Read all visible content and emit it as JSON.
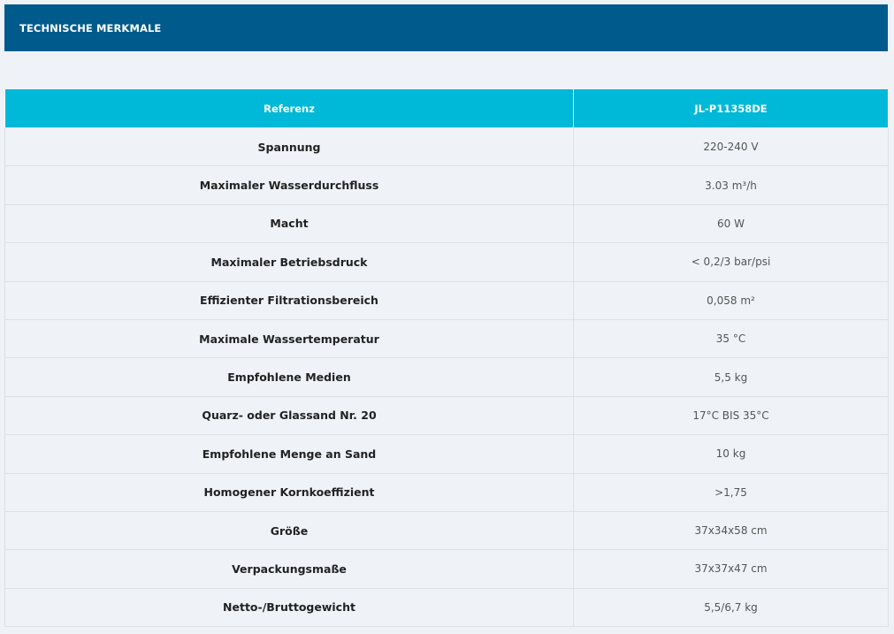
{
  "header": {
    "title": "TECHNISCHE MERKMALE"
  },
  "table": {
    "columns": [
      "Referenz",
      "JL-P11358DE"
    ],
    "rows": [
      {
        "label": "Spannung",
        "value": "220-240 V"
      },
      {
        "label": "Maximaler Wasserdurchfluss",
        "value": "3.03 m³/h"
      },
      {
        "label": "Macht",
        "value": "60 W"
      },
      {
        "label": "Maximaler Betriebsdruck",
        "value": "< 0,2/3 bar/psi"
      },
      {
        "label": "Effizienter Filtrationsbereich",
        "value": "0,058 m²"
      },
      {
        "label": "Maximale Wassertemperatur",
        "value": "35 °C"
      },
      {
        "label": "Empfohlene Medien",
        "value": "5,5 kg"
      },
      {
        "label": "Quarz- oder Glassand Nr. 20",
        "value": "17°C BIS 35°C"
      },
      {
        "label": "Empfohlene Menge an Sand",
        "value": "10 kg"
      },
      {
        "label": "Homogener Kornkoeffizient",
        "value": ">1,75"
      },
      {
        "label": "Größe",
        "value": "37x34x58 cm"
      },
      {
        "label": "Verpackungsmaße",
        "value": "37x37x47 cm"
      },
      {
        "label": "Netto-/Bruttogewicht",
        "value": "5,5/6,7 kg"
      }
    ]
  }
}
